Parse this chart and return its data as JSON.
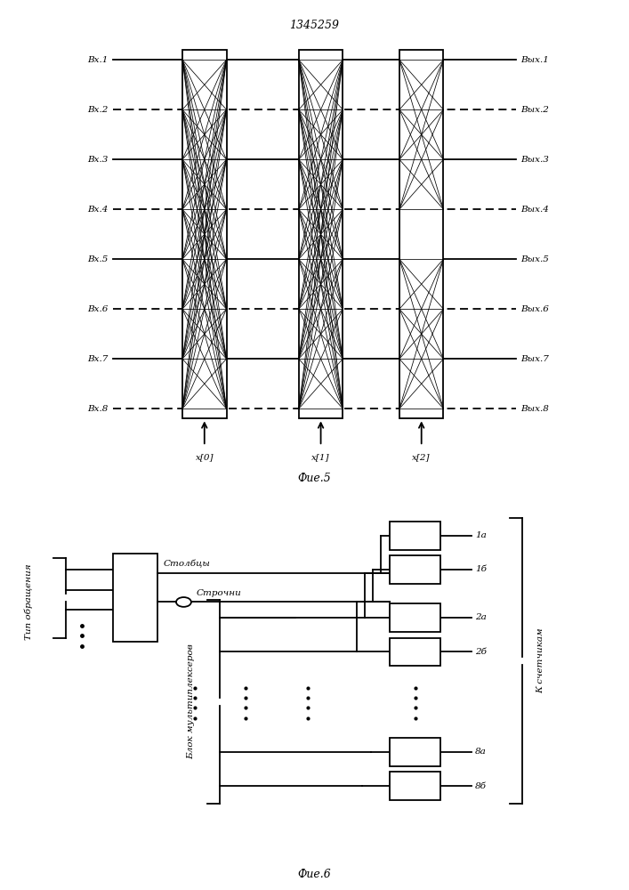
{
  "title": "1345259",
  "fig5_caption": "Фие.5",
  "fig6_caption": "Фие.6",
  "left_labels": [
    "Вх.1",
    "Вх.2",
    "Вх.3",
    "Вх.4",
    "Вх.5",
    "Вх.6",
    "Вх.7",
    "Вх.8"
  ],
  "right_labels": [
    "Вых.1",
    "Вых.2",
    "Вых.3",
    "Вых.4",
    "Вых.5",
    "Вых.6",
    "Вых.7",
    "Вых.8"
  ],
  "x_labels": [
    "x[0]",
    "x[1]",
    "x[2]"
  ],
  "tip_label": "Тип обращения",
  "stolbcy_label": "Столбцы",
  "strochni_label": "Строчни",
  "blok_label": "Блок мультиплексеров",
  "k_label": "К счетчикам",
  "bg_color": "#ffffff",
  "line_color": "#000000",
  "lw": 1.3,
  "font_size": 7.5
}
